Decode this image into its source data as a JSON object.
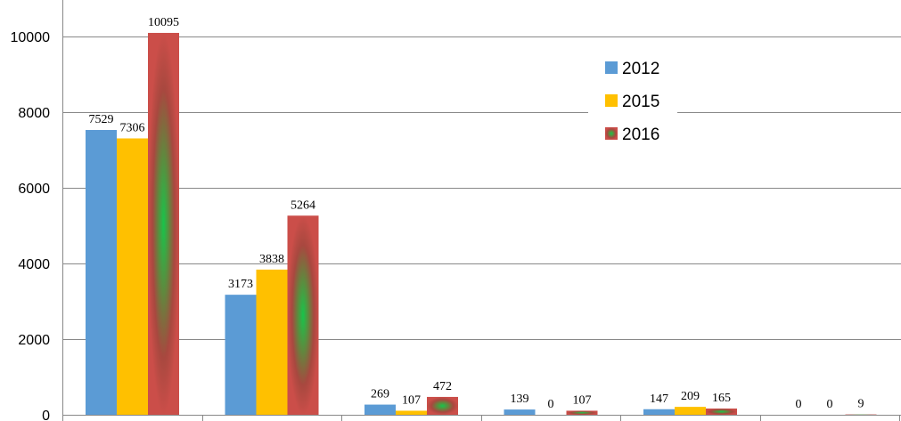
{
  "chart_data": {
    "type": "bar",
    "categories": [
      "",
      "",
      "",
      "",
      "",
      ""
    ],
    "series": [
      {
        "name": "2012",
        "values": [
          7529,
          3173,
          269,
          139,
          147,
          0
        ],
        "color": "#5B9BD5",
        "style": "solid"
      },
      {
        "name": "2015",
        "values": [
          7306,
          3838,
          107,
          0,
          209,
          0
        ],
        "color": "#FFC000",
        "style": "solid"
      },
      {
        "name": "2016",
        "values": [
          10095,
          5264,
          472,
          107,
          165,
          9
        ],
        "color": "#C0504D",
        "style": "radial-green-center"
      }
    ],
    "ylim": [
      0,
      10000
    ],
    "yticks": [
      0,
      2000,
      4000,
      6000,
      8000,
      10000
    ],
    "grid": true,
    "legend": "top-right",
    "data_labels": true
  }
}
